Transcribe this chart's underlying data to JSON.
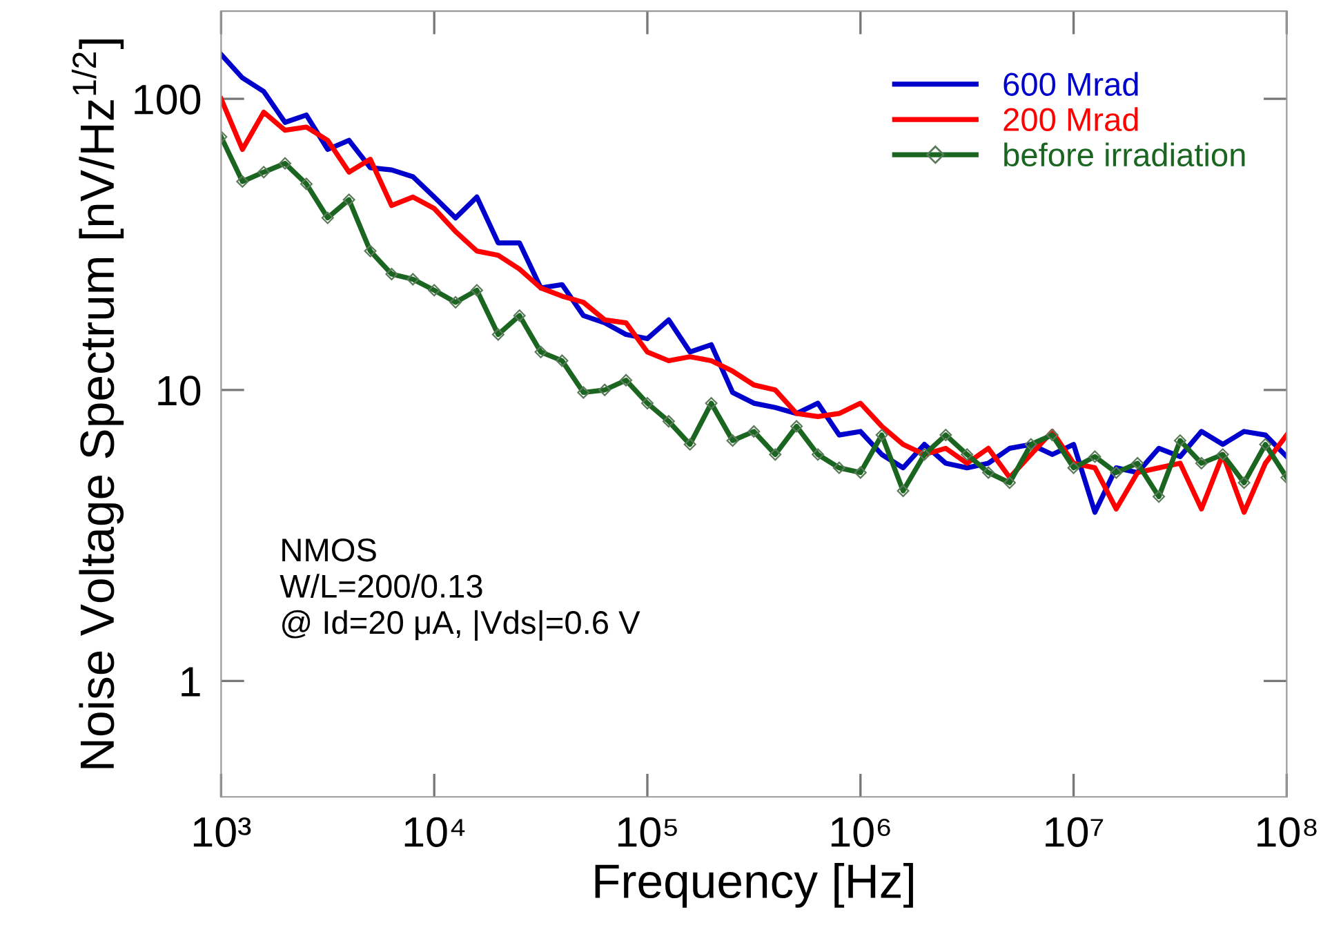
{
  "chart_data": {
    "type": "line",
    "xlabel": "Frequency [Hz]",
    "ylabel": "Noise Voltage Spectrum [nV/Hz$^{1/2}$]",
    "log": "xy",
    "xlim": [
      1000,
      100000000
    ],
    "ylim": [
      0.4,
      200
    ],
    "xticks": [
      {
        "value": 1000,
        "label": "10³"
      },
      {
        "value": 10000,
        "label": "10⁴"
      },
      {
        "value": 100000,
        "label": "10⁵"
      },
      {
        "value": 1000000,
        "label": "10⁶"
      },
      {
        "value": 10000000,
        "label": "10⁷"
      },
      {
        "value": 100000000,
        "label": "10⁸"
      }
    ],
    "yticks": [
      1,
      10,
      100
    ],
    "grid": false,
    "legend": "top right",
    "line_style": "solid",
    "annotations": [
      "NMOS\nW/L=200/0.13\n@ Id=20 μA, |Vds|=0.6 V"
    ],
    "x": [
      1000,
      1259,
      1585,
      1995,
      2512,
      3162,
      3981,
      5012,
      6310,
      7943,
      10000,
      12590,
      15850,
      19950,
      25120,
      31620,
      39810,
      50120,
      63100,
      79430,
      100000,
      125900,
      158500,
      199500,
      251200,
      316200,
      398100,
      501200,
      631000,
      794300,
      1000000,
      1259000,
      1585000,
      1995000,
      2512000,
      3162000,
      3981000,
      5012000,
      6310000,
      7943000,
      10000000,
      12590000,
      15850000,
      19950000,
      25120000,
      31620000,
      39810000,
      50120000,
      63100000,
      79430000,
      100000000
    ],
    "series": [
      {
        "name": "600 Mrad",
        "color": "#0000cc",
        "marker": "none",
        "values": [
          142,
          118,
          106,
          83,
          88,
          67,
          72,
          58,
          57,
          54,
          46,
          39,
          46,
          32,
          32,
          22.4,
          23,
          18,
          17,
          15.5,
          15,
          17.4,
          13.5,
          14.3,
          9.8,
          9.0,
          8.7,
          8.3,
          9.0,
          7.0,
          7.2,
          6.0,
          5.4,
          6.5,
          5.6,
          5.4,
          5.6,
          6.3,
          6.5,
          6.0,
          6.5,
          3.8,
          5.4,
          5.2,
          6.3,
          5.9,
          7.2,
          6.5,
          7.2,
          7.0,
          5.9
        ]
      },
      {
        "name": "200 Mrad",
        "color": "#ff0000",
        "marker": "none",
        "values": [
          100,
          67,
          90,
          78,
          80,
          72,
          56,
          62,
          43,
          46,
          42,
          35,
          30,
          29,
          26,
          22.4,
          21,
          20,
          17.4,
          17,
          13.5,
          12.6,
          13,
          12.6,
          11.6,
          10.4,
          10,
          8.3,
          8.1,
          8.3,
          9.0,
          7.5,
          6.5,
          6.0,
          6.3,
          5.6,
          6.3,
          5.0,
          6.0,
          7.2,
          5.6,
          5.4,
          3.9,
          5.2,
          5.4,
          5.6,
          3.9,
          6.0,
          3.8,
          5.6,
          7.0
        ]
      },
      {
        "name": "before irradiation",
        "color": "#1a6620",
        "marker": "diamond",
        "values": [
          74,
          52,
          56,
          60,
          51,
          39,
          45,
          30,
          25,
          24,
          22,
          20,
          22,
          15.5,
          18,
          13.5,
          12.6,
          9.8,
          10,
          10.8,
          9.0,
          7.8,
          6.5,
          9.0,
          6.7,
          7.2,
          6.0,
          7.5,
          6.0,
          5.4,
          5.2,
          7.0,
          4.5,
          6.0,
          7.0,
          6.0,
          5.2,
          4.8,
          6.5,
          7.0,
          5.4,
          5.9,
          5.2,
          5.6,
          4.3,
          6.7,
          5.6,
          6.0,
          4.8,
          6.5,
          5.0
        ]
      }
    ]
  }
}
